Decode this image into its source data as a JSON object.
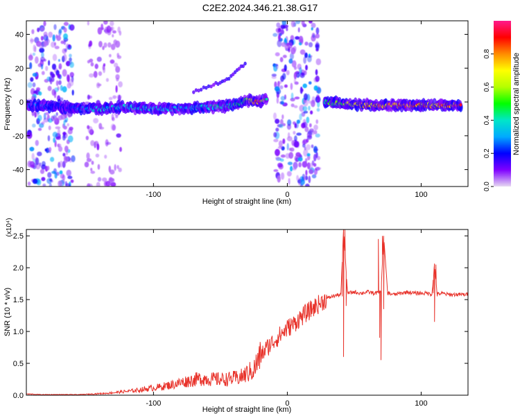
{
  "title": "C2E2.2024.346.21.38.G17",
  "chart_data": [
    {
      "type": "heatmap",
      "xlabel": "Height of straight line (km)",
      "ylabel": "Frequency (Hz)",
      "xlim": [
        -195,
        135
      ],
      "ylim": [
        -50,
        48
      ],
      "x_ticks": [
        -100,
        0,
        100
      ],
      "x_tick_labels": [
        "-100",
        "0",
        "100"
      ],
      "y_ticks": [
        -40,
        -20,
        0,
        20,
        40
      ],
      "y_tick_labels": [
        "-40",
        "-20",
        "0",
        "20",
        "40"
      ],
      "colorbar": {
        "label": "Normalized spectral amplitude",
        "range": [
          0,
          1
        ],
        "ticks": [
          0.0,
          0.2,
          0.4,
          0.6,
          0.8
        ],
        "tick_labels": [
          "0.0",
          "0.2",
          "0.4",
          "0.6",
          "0.8"
        ],
        "colors": [
          "#e6d9f2",
          "#7f00ff",
          "#0000ff",
          "#00aaff",
          "#00e6c8",
          "#00ff00",
          "#b4ff00",
          "#ffff00",
          "#ff8c00",
          "#ff0000",
          "#ff1a8c"
        ]
      },
      "noise_bands": [
        {
          "x_range": [
            -193,
            -160
          ],
          "intensity": 0.35
        },
        {
          "x_range": [
            -150,
            -124
          ],
          "intensity": 0.1
        },
        {
          "x_range": [
            -10,
            24
          ],
          "intensity": 0.35
        }
      ],
      "ridge": [
        {
          "x": -195,
          "y": -2,
          "amp": 0.3
        },
        {
          "x": -165,
          "y": -3,
          "amp": 0.2
        },
        {
          "x": -155,
          "y": -4,
          "amp": 0.35
        },
        {
          "x": -140,
          "y": -4,
          "amp": 0.4
        },
        {
          "x": -120,
          "y": -3,
          "amp": 0.4
        },
        {
          "x": -100,
          "y": -4,
          "amp": 0.35
        },
        {
          "x": -80,
          "y": -4,
          "amp": 0.35
        },
        {
          "x": -60,
          "y": -3,
          "amp": 0.4
        },
        {
          "x": -40,
          "y": -2,
          "amp": 0.45
        },
        {
          "x": -30,
          "y": 1,
          "amp": 0.55
        },
        {
          "x": -22,
          "y": 0,
          "amp": 0.9
        },
        {
          "x": -15,
          "y": 2,
          "amp": 0.5
        },
        {
          "x": 28,
          "y": 0,
          "amp": 0.5
        },
        {
          "x": 40,
          "y": -1,
          "amp": 0.6
        },
        {
          "x": 60,
          "y": -2,
          "amp": 0.8
        },
        {
          "x": 90,
          "y": -2,
          "amp": 0.85
        },
        {
          "x": 110,
          "y": -2,
          "amp": 0.8
        },
        {
          "x": 130,
          "y": -2,
          "amp": 0.9
        }
      ],
      "harmonic_trace": [
        {
          "x": -70,
          "y": 6
        },
        {
          "x": -55,
          "y": 10
        },
        {
          "x": -42,
          "y": 15
        },
        {
          "x": -30,
          "y": 24
        }
      ]
    },
    {
      "type": "line",
      "xlabel": "Height of straight line (km)",
      "ylabel": "SNR (10 * v/v)",
      "y_scale_note": "(x10⁴)",
      "xlim": [
        -195,
        135
      ],
      "ylim": [
        0,
        2.6
      ],
      "x_ticks": [
        -100,
        0,
        100
      ],
      "x_tick_labels": [
        "-100",
        "0",
        "100"
      ],
      "y_ticks": [
        0.0,
        0.5,
        1.0,
        1.5,
        2.0,
        2.5
      ],
      "y_tick_labels": [
        "0.0",
        "0.5",
        "1.0",
        "1.5",
        "2.0",
        "2.5"
      ],
      "color": "#e8322a",
      "series": [
        {
          "x": [
            -195,
            -185,
            -175,
            -165,
            -155,
            -145,
            -135,
            -125,
            -115,
            -105,
            -95,
            -85,
            -75,
            -65,
            -55,
            -45,
            -35,
            -25,
            -20,
            -15,
            -10,
            -5,
            0,
            5,
            10,
            15,
            20,
            25,
            30,
            35,
            40,
            42,
            45,
            50,
            55,
            60,
            65,
            70,
            72,
            75,
            80,
            85,
            90,
            95,
            100,
            105,
            108,
            110,
            112,
            115,
            120,
            125,
            130,
            135
          ],
          "y": [
            0.02,
            0.01,
            0.01,
            0.01,
            0.01,
            0.02,
            0.03,
            0.05,
            0.07,
            0.1,
            0.13,
            0.17,
            0.22,
            0.26,
            0.25,
            0.25,
            0.28,
            0.4,
            0.62,
            0.75,
            0.85,
            0.95,
            1.05,
            1.12,
            1.22,
            1.3,
            1.38,
            1.45,
            1.52,
            1.56,
            1.58,
            2.6,
            1.6,
            1.62,
            1.6,
            1.62,
            1.6,
            1.62,
            2.5,
            1.6,
            1.58,
            1.6,
            1.62,
            1.6,
            1.6,
            1.6,
            1.58,
            2.05,
            1.58,
            1.6,
            1.58,
            1.58,
            1.58,
            1.58
          ]
        }
      ],
      "spikes": [
        {
          "x": 41,
          "y": 1.55
        },
        {
          "x": 42,
          "y": 0.6
        },
        {
          "x": 43,
          "y": 2.6
        },
        {
          "x": 44,
          "y": 1.4
        },
        {
          "x": 68,
          "y": 2.45
        },
        {
          "x": 69,
          "y": 0.9
        },
        {
          "x": 70,
          "y": 0.55
        },
        {
          "x": 71,
          "y": 2.5
        },
        {
          "x": 72,
          "y": 1.35
        },
        {
          "x": 109,
          "y": 1.6
        },
        {
          "x": 110,
          "y": 1.15
        },
        {
          "x": 111,
          "y": 2.05
        },
        {
          "x": 112,
          "y": 1.55
        }
      ]
    }
  ]
}
